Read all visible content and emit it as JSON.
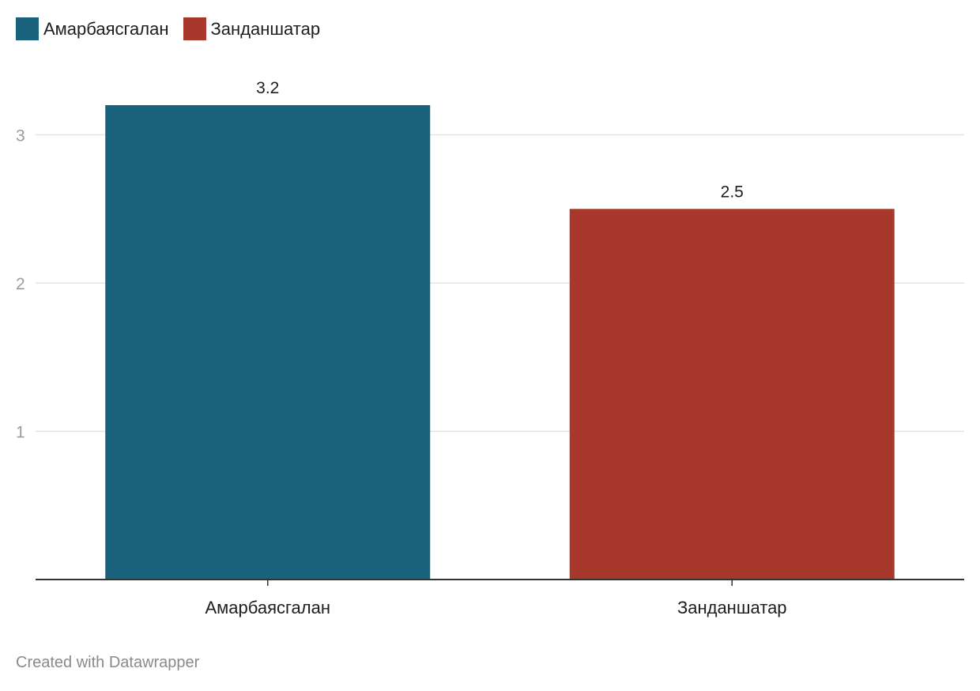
{
  "chart_data": {
    "type": "bar",
    "categories": [
      "Амарбаясгалан",
      "Занданшатар"
    ],
    "values": [
      3.2,
      2.5
    ],
    "value_labels": [
      "3.2",
      "2.5"
    ],
    "colors": [
      "#18627c",
      "#a8382c"
    ],
    "yticks": [
      1,
      2,
      3
    ],
    "ylim": [
      0,
      3.2
    ],
    "grid": true,
    "legend": {
      "placement": "top-left",
      "entries": [
        {
          "label": "Амарбаясгалан",
          "color": "#18627c"
        },
        {
          "label": "Занданшатар",
          "color": "#a8382c"
        }
      ]
    }
  },
  "footer": {
    "credit": "Created with Datawrapper"
  }
}
